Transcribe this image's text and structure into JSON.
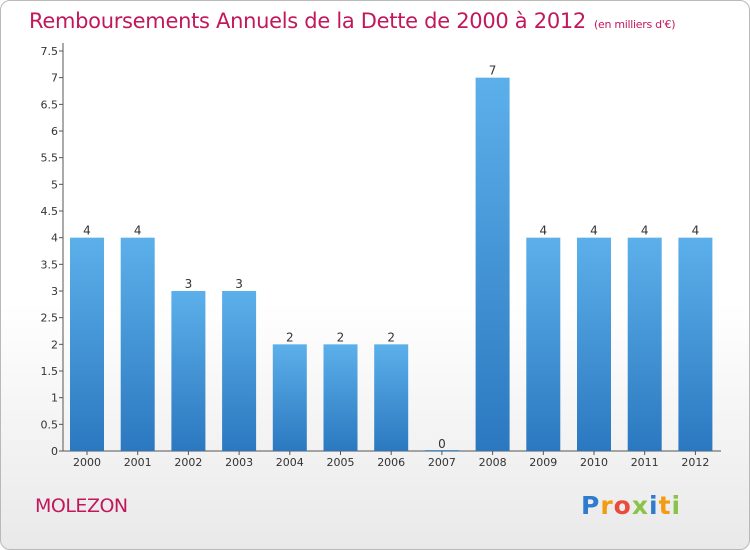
{
  "title": "Remboursements Annuels de la Dette de 2000 à 2012",
  "subtitle": "(en milliers d'€)",
  "commune": "MOLEZON",
  "logo": "Proxiti",
  "colors": {
    "bar": "#3d8fd6",
    "bar_light": "#5aade8",
    "title": "#c2185b"
  },
  "chart_data": {
    "type": "bar",
    "categories": [
      "2000",
      "2001",
      "2002",
      "2003",
      "2004",
      "2005",
      "2006",
      "2007",
      "2008",
      "2009",
      "2010",
      "2011",
      "2012"
    ],
    "values": [
      4,
      4,
      3,
      3,
      2,
      2,
      2,
      0,
      7,
      4,
      4,
      4,
      4
    ],
    "labels": [
      "4",
      "4",
      "3",
      "3",
      "2",
      "2",
      "2",
      "0",
      "7",
      "4",
      "4",
      "4",
      "4"
    ],
    "ylim": [
      0,
      7.5
    ],
    "yticks": [
      "0",
      "0.5",
      "1",
      "1.5",
      "2",
      "2.5",
      "3",
      "3.5",
      "4",
      "4.5",
      "5",
      "5.5",
      "6",
      "6.5",
      "7",
      "7.5"
    ],
    "grid": false
  }
}
